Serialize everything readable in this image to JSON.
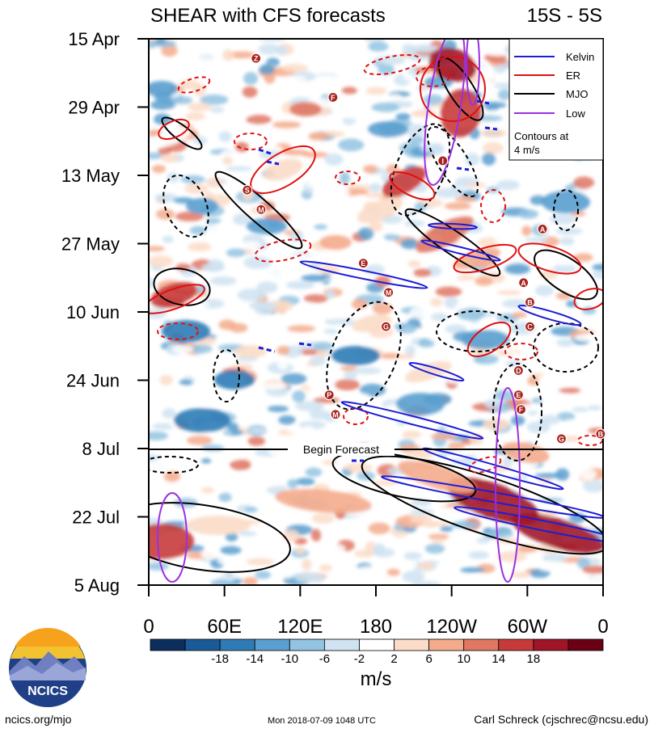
{
  "chart_data": {
    "type": "heatmap",
    "title": "SHEAR with CFS forecasts",
    "region_label": "15S - 5S",
    "xlabel": "",
    "ylabel": "",
    "x_tick_labels": [
      "0",
      "60E",
      "120E",
      "180",
      "120W",
      "60W",
      "0"
    ],
    "x_ticks_deg": [
      0,
      60,
      120,
      180,
      240,
      300,
      360
    ],
    "y_tick_labels": [
      "15 Apr",
      "29 Apr",
      "13 May",
      "27 May",
      "10 Jun",
      "24 Jun",
      "8 Jul",
      "22 Jul",
      "5 Aug"
    ],
    "y_range": [
      "15 Apr",
      "5 Aug"
    ],
    "begin_forecast": {
      "date": "8 Jul",
      "label": "Begin Forecast"
    },
    "colorbar": {
      "label": "m/s",
      "tick_labels": [
        "-18",
        "-14",
        "-10",
        "-6",
        "-2",
        "2",
        "6",
        "10",
        "14",
        "18"
      ],
      "colors": [
        "#0b2e5c",
        "#1a5a96",
        "#2f7bb6",
        "#5a9fcf",
        "#93c3e2",
        "#cfe3f1",
        "#ffffff",
        "#fbdcc8",
        "#f4ab8c",
        "#e07763",
        "#c63b3a",
        "#a01428",
        "#6b0015"
      ]
    },
    "legend": {
      "position": "top-right",
      "items": [
        {
          "name": "Kelvin",
          "color": "#1d1dd6"
        },
        {
          "name": "ER",
          "color": "#e01010"
        },
        {
          "name": "MJO",
          "color": "#000000"
        },
        {
          "name": "Low",
          "color": "#9b30e0"
        }
      ],
      "note": [
        "Contours at",
        "4 m/s"
      ]
    },
    "storm_markers": [
      {
        "label": "Z",
        "lon": 85,
        "date": "19 Apr"
      },
      {
        "label": "F",
        "lon": 146,
        "date": "27 Apr"
      },
      {
        "label": "S",
        "lon": 78,
        "date": "16 May"
      },
      {
        "label": "M",
        "lon": 89,
        "date": "20 May"
      },
      {
        "label": "I",
        "lon": 233,
        "date": "10 May"
      },
      {
        "label": "A",
        "lon": 312,
        "date": "24 May"
      },
      {
        "label": "E",
        "lon": 170,
        "date": "31 May"
      },
      {
        "label": "M",
        "lon": 190,
        "date": "6 Jun"
      },
      {
        "label": "A",
        "lon": 297,
        "date": "4 Jun"
      },
      {
        "label": "B",
        "lon": 302,
        "date": "8 Jun"
      },
      {
        "label": "G",
        "lon": 188,
        "date": "13 Jun"
      },
      {
        "label": "C",
        "lon": 302,
        "date": "13 Jun"
      },
      {
        "label": "D",
        "lon": 293,
        "date": "22 Jun"
      },
      {
        "label": "E",
        "lon": 293,
        "date": "27 Jun"
      },
      {
        "label": "F",
        "lon": 295,
        "date": "30 Jun"
      },
      {
        "label": "P",
        "lon": 143,
        "date": "27 Jun"
      },
      {
        "label": "M",
        "lon": 148,
        "date": "1 Jul"
      },
      {
        "label": "G",
        "lon": 327,
        "date": "6 Jul"
      },
      {
        "label": "B",
        "lon": 358,
        "date": "5 Jul"
      }
    ]
  },
  "logo": {
    "text": "NCICS"
  },
  "footer": {
    "left": "ncics.org/mjo",
    "center": "Mon 2018-07-09 1048 UTC",
    "right": "Carl Schreck (cjschrec@ncsu.edu)"
  }
}
